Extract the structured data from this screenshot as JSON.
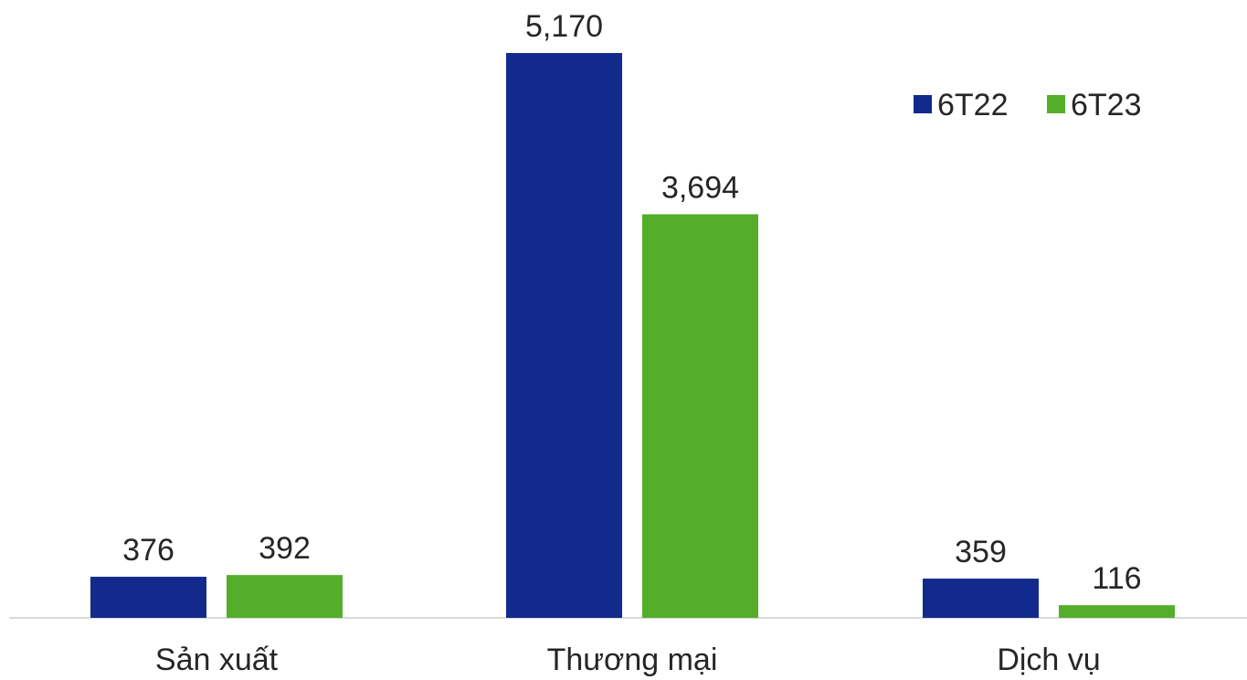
{
  "chart_data": {
    "type": "bar",
    "categories": [
      "Sản xuất",
      "Thương mại",
      "Dịch vụ"
    ],
    "series": [
      {
        "name": "6T22",
        "values": [
          376,
          5170,
          359
        ],
        "labels": [
          "376",
          "5,170",
          "359"
        ],
        "color": "#122a8c"
      },
      {
        "name": "6T23",
        "values": [
          392,
          3694,
          116
        ],
        "labels": [
          "392",
          "3,694",
          "116"
        ],
        "color": "#55ae2a"
      }
    ],
    "title": "",
    "xlabel": "",
    "ylabel": "",
    "ylim": [
      0,
      5170
    ],
    "grid": false,
    "legend": "top-right",
    "axis_color": "#d9d9d9"
  }
}
